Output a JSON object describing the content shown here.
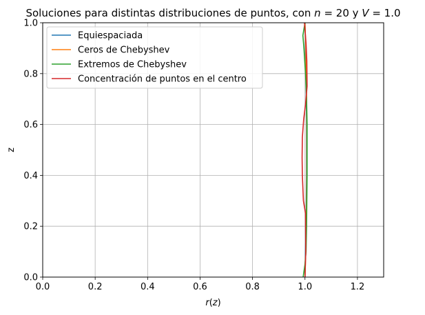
{
  "chart_data": {
    "type": "line",
    "title": "Soluciones para distintas distribuciones de puntos, con n = 20 y V = 1.0",
    "title_parts": [
      {
        "text": "Soluciones para distintas distribuciones de puntos, con ",
        "italic": false
      },
      {
        "text": "n",
        "italic": true
      },
      {
        "text": " = 20 y ",
        "italic": false
      },
      {
        "text": "V",
        "italic": true
      },
      {
        "text": " = 1.0",
        "italic": false
      }
    ],
    "xlabel": "r(z)",
    "xlabel_parts": [
      {
        "text": "r",
        "italic": true
      },
      {
        "text": "(",
        "italic": false
      },
      {
        "text": "z",
        "italic": true
      },
      {
        "text": ")",
        "italic": false
      }
    ],
    "ylabel": "z",
    "xlim": [
      0.0,
      1.3
    ],
    "ylim": [
      0.0,
      1.0
    ],
    "xticks": [
      0.0,
      0.2,
      0.4,
      0.6,
      0.8,
      1.0,
      1.2
    ],
    "xtick_labels": [
      "0.0",
      "0.2",
      "0.4",
      "0.6",
      "0.8",
      "1.0",
      "1.2"
    ],
    "yticks": [
      0.0,
      0.2,
      0.4,
      0.6,
      0.8,
      1.0
    ],
    "ytick_labels": [
      "0.0",
      "0.2",
      "0.4",
      "0.6",
      "0.8",
      "1.0"
    ],
    "grid": true,
    "legend_position": "top-left",
    "series": [
      {
        "name": "Equiespaciada",
        "color": "#1f77b4",
        "points": [
          [
            1.0,
            0.0
          ],
          [
            1.002,
            0.1
          ],
          [
            1.004,
            0.2
          ],
          [
            1.005,
            0.3
          ],
          [
            1.006,
            0.4
          ],
          [
            1.006,
            0.5
          ],
          [
            1.006,
            0.6
          ],
          [
            1.005,
            0.7
          ],
          [
            1.004,
            0.8
          ],
          [
            1.002,
            0.9
          ],
          [
            1.0,
            1.0
          ]
        ]
      },
      {
        "name": "Ceros de Chebyshev",
        "color": "#ff7f0e",
        "points": [
          [
            1.0,
            0.0
          ],
          [
            1.003,
            0.1
          ],
          [
            1.005,
            0.2
          ],
          [
            1.006,
            0.3
          ],
          [
            1.007,
            0.4
          ],
          [
            1.007,
            0.5
          ],
          [
            1.007,
            0.6
          ],
          [
            1.006,
            0.7
          ],
          [
            1.005,
            0.8
          ],
          [
            1.003,
            0.9
          ],
          [
            1.0,
            1.0
          ]
        ]
      },
      {
        "name": "Extremos de Chebyshev",
        "color": "#2ca02c",
        "points": [
          [
            0.993,
            0.0
          ],
          [
            1.0,
            0.05
          ],
          [
            1.004,
            0.1
          ],
          [
            1.006,
            0.2
          ],
          [
            1.007,
            0.3
          ],
          [
            1.008,
            0.4
          ],
          [
            1.008,
            0.5
          ],
          [
            1.008,
            0.6
          ],
          [
            1.006,
            0.7
          ],
          [
            1.002,
            0.8
          ],
          [
            0.996,
            0.9
          ],
          [
            0.992,
            0.95
          ],
          [
            1.0,
            1.0
          ]
        ]
      },
      {
        "name": "Concentración de puntos en el centro",
        "color": "#d62728",
        "points": [
          [
            1.0,
            0.0
          ],
          [
            1.003,
            0.1
          ],
          [
            1.002,
            0.25
          ],
          [
            0.994,
            0.3
          ],
          [
            0.99,
            0.4
          ],
          [
            0.989,
            0.47
          ],
          [
            0.99,
            0.55
          ],
          [
            0.995,
            0.62
          ],
          [
            1.002,
            0.68
          ],
          [
            1.008,
            0.75
          ],
          [
            1.007,
            0.85
          ],
          [
            1.004,
            0.92
          ],
          [
            0.998,
            1.0
          ]
        ]
      }
    ]
  }
}
